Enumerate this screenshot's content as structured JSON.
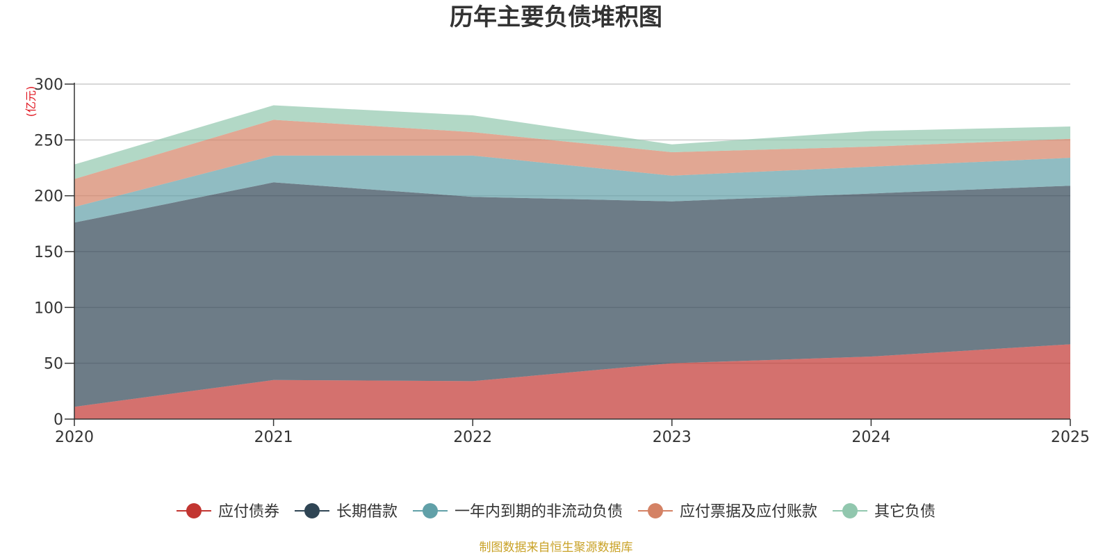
{
  "chart_data": {
    "type": "area",
    "stacked": true,
    "title": "历年主要负债堆积图",
    "unit": "(亿元)",
    "x": [
      "2020",
      "2021",
      "2022",
      "2023",
      "2024",
      "2025"
    ],
    "ylim": [
      0,
      300
    ],
    "yticks": [
      0,
      50,
      100,
      150,
      200,
      250,
      300
    ],
    "grid": true,
    "legend_position": "bottom",
    "series": [
      {
        "name": "应付债券",
        "color": "#c23531",
        "values": [
          11,
          35,
          34,
          50,
          56,
          67
        ]
      },
      {
        "name": "长期借款",
        "color": "#2f4554",
        "values": [
          165,
          177,
          165,
          145,
          146,
          142
        ]
      },
      {
        "name": "一年内到期的非流动负债",
        "color": "#61a0a8",
        "values": [
          14,
          24,
          37,
          23,
          24,
          25
        ]
      },
      {
        "name": "应付票据及应付账款",
        "color": "#d48265",
        "values": [
          25,
          32,
          21,
          21,
          18,
          17
        ]
      },
      {
        "name": "其它负债",
        "color": "#91c7ae",
        "values": [
          13,
          13,
          15,
          7,
          14,
          11
        ]
      }
    ],
    "source": "制图数据来自恒生聚源数据库"
  }
}
